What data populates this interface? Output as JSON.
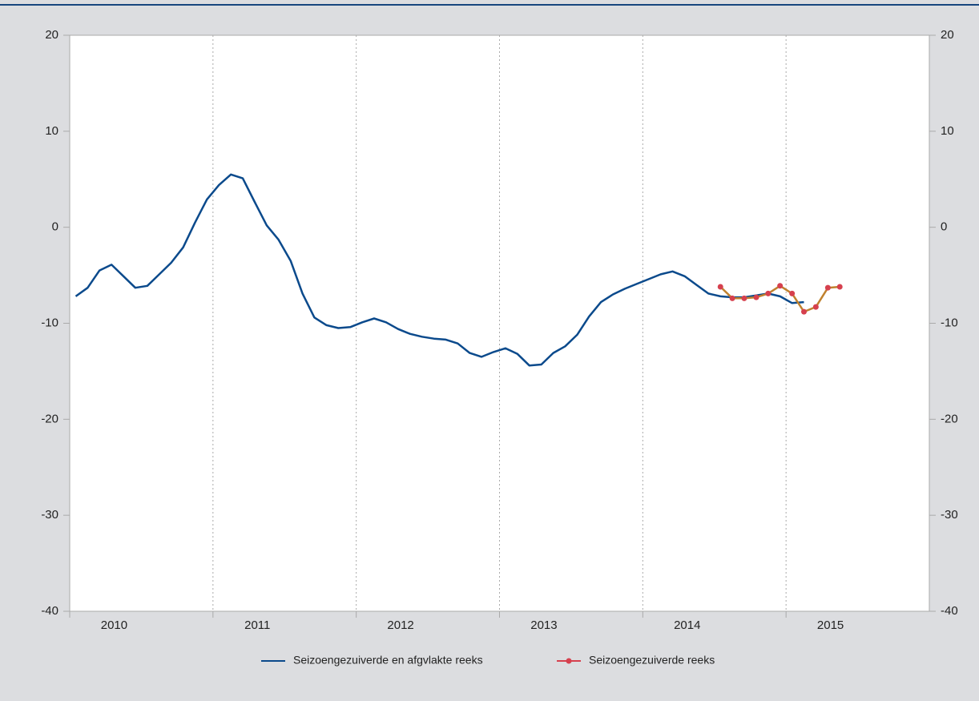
{
  "chart_data": {
    "type": "line",
    "x": [
      2010.042,
      2010.125,
      2010.208,
      2010.292,
      2010.375,
      2010.458,
      2010.542,
      2010.625,
      2010.708,
      2010.792,
      2010.875,
      2010.958,
      2011.042,
      2011.125,
      2011.208,
      2011.292,
      2011.375,
      2011.458,
      2011.542,
      2011.625,
      2011.708,
      2011.792,
      2011.875,
      2011.958,
      2012.042,
      2012.125,
      2012.208,
      2012.292,
      2012.375,
      2012.458,
      2012.542,
      2012.625,
      2012.708,
      2012.792,
      2012.875,
      2012.958,
      2013.042,
      2013.125,
      2013.208,
      2013.292,
      2013.375,
      2013.458,
      2013.542,
      2013.625,
      2013.708,
      2013.792,
      2013.875,
      2013.958,
      2014.042,
      2014.125,
      2014.208,
      2014.292,
      2014.375,
      2014.458,
      2014.542,
      2014.625,
      2014.708,
      2014.792,
      2014.875,
      2014.958,
      2015.042,
      2015.125,
      2015.208,
      2015.292,
      2015.375
    ],
    "series": [
      {
        "name": "Seizoengezuiverde en afgvlakte reeks",
        "color": "#0b4a8c",
        "markers": false,
        "values": [
          -7.2,
          -6.3,
          -4.5,
          -3.9,
          -5.1,
          -6.3,
          -6.1,
          -4.9,
          -3.7,
          -2.1,
          0.5,
          2.9,
          4.4,
          5.5,
          5.1,
          2.6,
          0.2,
          -1.3,
          -3.5,
          -6.9,
          -9.4,
          -10.2,
          -10.5,
          -10.4,
          -9.9,
          -9.5,
          -9.9,
          -10.6,
          -11.1,
          -11.4,
          -11.6,
          -11.7,
          -12.1,
          -13.1,
          -13.5,
          -13.0,
          -12.6,
          -13.2,
          -14.4,
          -14.3,
          -13.1,
          -12.4,
          -11.2,
          -9.3,
          -7.8,
          -7.0,
          -6.4,
          -5.9,
          -5.4,
          -4.9,
          -4.6,
          -5.1,
          -6.0,
          -6.9,
          -7.2,
          -7.3,
          -7.3,
          -7.1,
          -6.9,
          -7.2,
          -7.9,
          -7.8,
          null,
          null,
          null
        ]
      },
      {
        "name": "Seizoengezuiverde reeks",
        "color": "#d6404e",
        "line_color": "#c0812e",
        "markers": true,
        "values": [
          null,
          null,
          null,
          null,
          null,
          null,
          null,
          null,
          null,
          null,
          null,
          null,
          null,
          null,
          null,
          null,
          null,
          null,
          null,
          null,
          null,
          null,
          null,
          null,
          null,
          null,
          null,
          null,
          null,
          null,
          null,
          null,
          null,
          null,
          null,
          null,
          null,
          null,
          null,
          null,
          null,
          null,
          null,
          null,
          null,
          null,
          null,
          null,
          null,
          null,
          null,
          null,
          null,
          null,
          -6.2,
          -7.4,
          -7.4,
          -7.3,
          -6.9,
          -6.1,
          -6.9,
          -8.8,
          -8.3,
          -6.3,
          -6.2
        ]
      }
    ],
    "xlim": [
      2010,
      2016
    ],
    "xticks": [
      2010,
      2011,
      2012,
      2013,
      2014,
      2015
    ],
    "ylim": [
      -40,
      20
    ],
    "yticks": [
      -40,
      -30,
      -20,
      -10,
      0,
      10,
      20
    ],
    "x_grid": true,
    "right_axis_labels": true
  }
}
